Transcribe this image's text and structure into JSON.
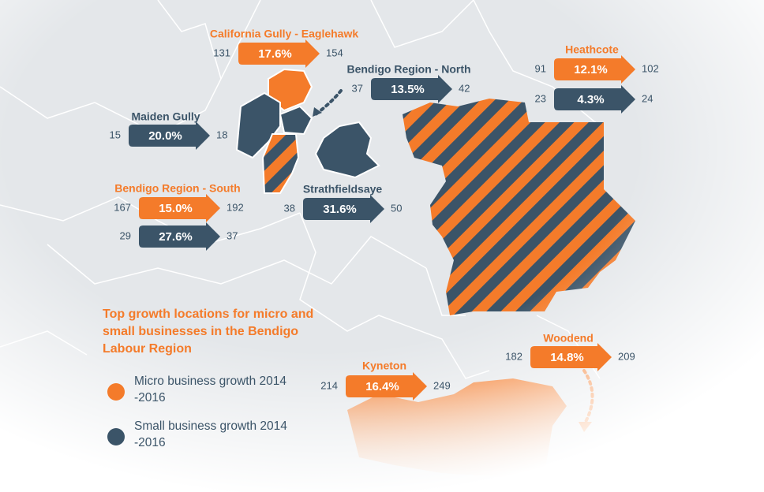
{
  "title": "Top growth locations for micro and small businesses in the Bendigo Labour Region",
  "legend": [
    {
      "label": "Micro business growth 2014 -2016",
      "color": "#f47b2a"
    },
    {
      "label": "Small business growth 2014 -2016",
      "color": "#3b5468"
    }
  ],
  "locations": [
    {
      "name": "California Gully - Eaglehawk",
      "color": "#f47b2a",
      "arrows": [
        {
          "from": 131,
          "growth": "17.6%",
          "to": 154,
          "color": "#f47b2a"
        }
      ]
    },
    {
      "name": "Bendigo Region - North",
      "color": "#3b5468",
      "arrows": [
        {
          "from": 37,
          "growth": "13.5%",
          "to": 42,
          "color": "#3b5468"
        }
      ]
    },
    {
      "name": "Heathcote",
      "color": "#f47b2a",
      "arrows": [
        {
          "from": 91,
          "growth": "12.1%",
          "to": 102,
          "color": "#f47b2a"
        },
        {
          "from": 23,
          "growth": "4.3%",
          "to": 24,
          "color": "#3b5468"
        }
      ]
    },
    {
      "name": "Maiden Gully",
      "color": "#3b5468",
      "arrows": [
        {
          "from": 15,
          "growth": "20.0%",
          "to": 18,
          "color": "#3b5468"
        }
      ]
    },
    {
      "name": "Bendigo Region - South",
      "color": "#f47b2a",
      "arrows": [
        {
          "from": 167,
          "growth": "15.0%",
          "to": 192,
          "color": "#f47b2a"
        },
        {
          "from": 29,
          "growth": "27.6%",
          "to": 37,
          "color": "#3b5468"
        }
      ]
    },
    {
      "name": "Strathfieldsaye",
      "color": "#3b5468",
      "arrows": [
        {
          "from": 38,
          "growth": "31.6%",
          "to": 50,
          "color": "#3b5468"
        }
      ]
    },
    {
      "name": "Kyneton",
      "color": "#f47b2a",
      "arrows": [
        {
          "from": 214,
          "growth": "16.4%",
          "to": 249,
          "color": "#f47b2a"
        }
      ]
    },
    {
      "name": "Woodend",
      "color": "#f47b2a",
      "arrows": [
        {
          "from": 182,
          "growth": "14.8%",
          "to": 209,
          "color": "#f47b2a"
        }
      ]
    }
  ]
}
